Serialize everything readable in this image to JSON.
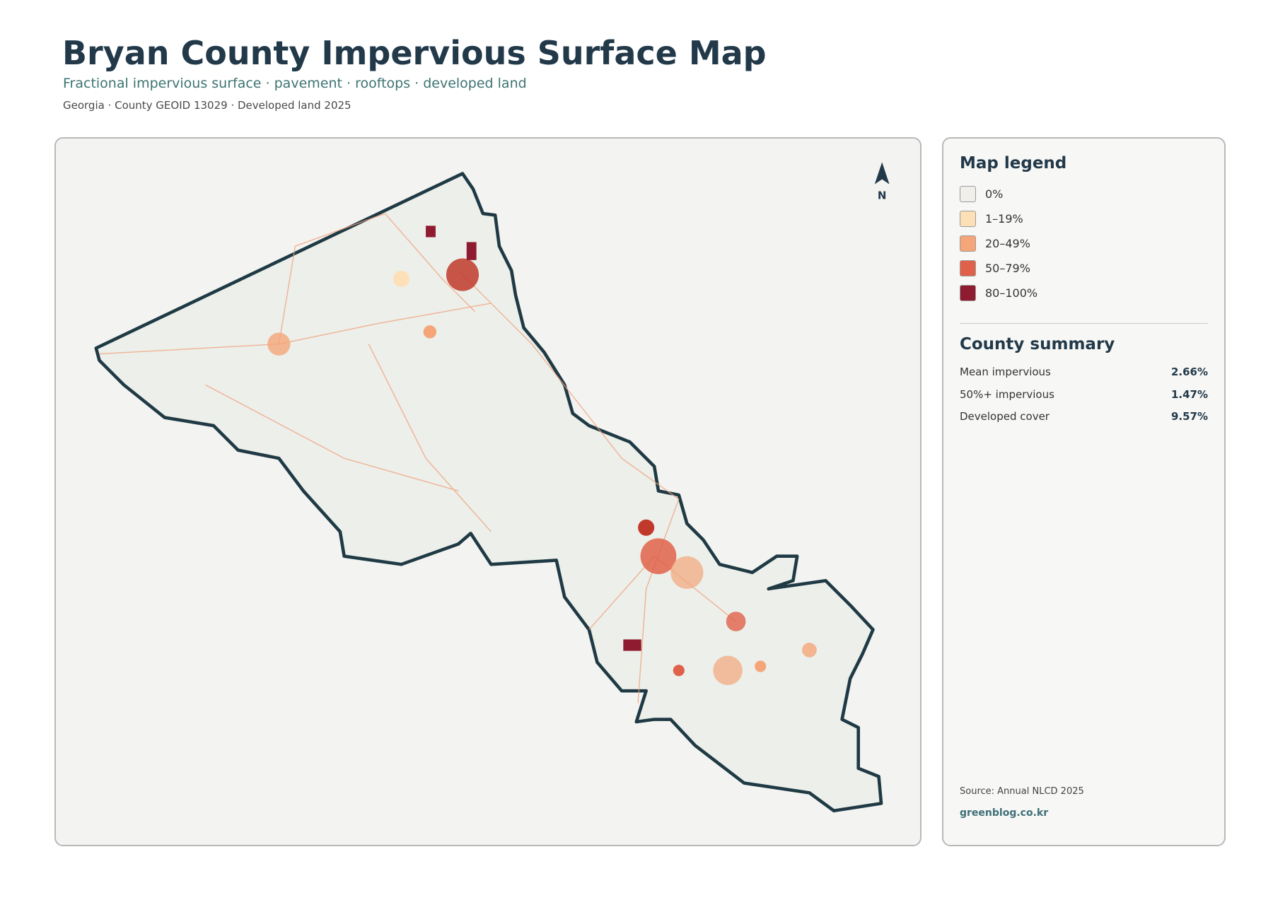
{
  "header": {
    "title": "Bryan County Impervious Surface Map",
    "subtitle": "Fractional impervious surface · pavement · rooftops · developed land",
    "meta": "Georgia · County GEOID 13029 · Developed land 2025"
  },
  "map": {
    "north_label": "N"
  },
  "legend": {
    "title": "Map legend",
    "items": [
      {
        "label": "0%",
        "color": "#f0efea"
      },
      {
        "label": "1–19%",
        "color": "#fde0b8"
      },
      {
        "label": "20–49%",
        "color": "#f4a679"
      },
      {
        "label": "50–79%",
        "color": "#e0614a"
      },
      {
        "label": "80–100%",
        "color": "#8e1b2f"
      }
    ]
  },
  "summary": {
    "title": "County summary",
    "rows": [
      {
        "label": "Mean impervious",
        "value": "2.66%"
      },
      {
        "label": "50%+ impervious",
        "value": "1.47%"
      },
      {
        "label": "Developed cover",
        "value": "9.57%"
      }
    ]
  },
  "footer": {
    "source": "Source: Annual NLCD 2025",
    "site": "greenblog.co.kr"
  }
}
